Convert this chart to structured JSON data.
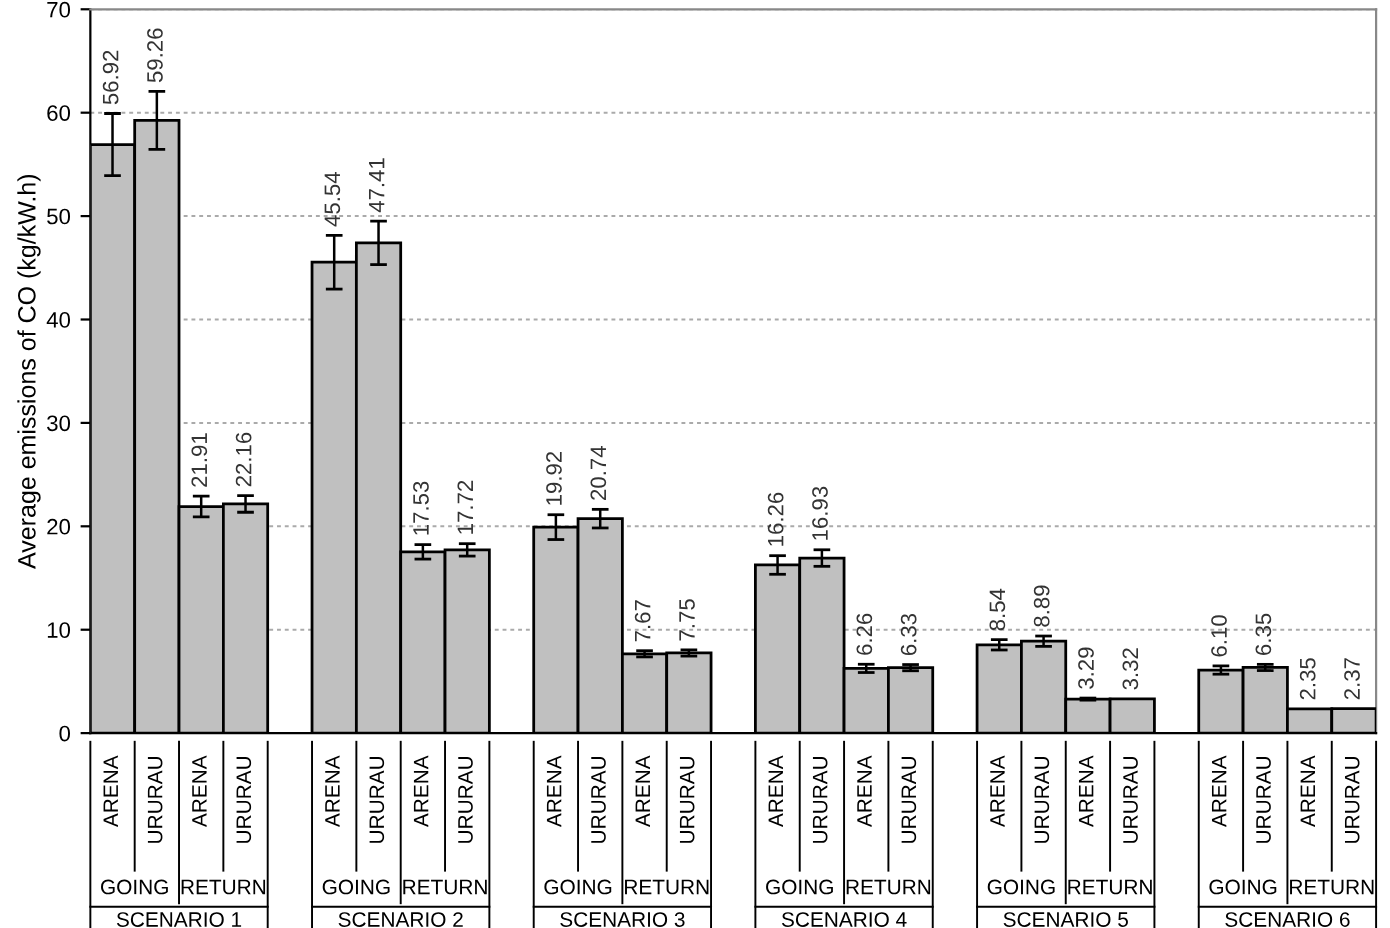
{
  "chart_data": {
    "type": "bar",
    "ylabel": "Average emissions of CO (kg/kW.h)",
    "categories": [
      "ARENA",
      "URURAU",
      "ARENA",
      "URURAU",
      null,
      "ARENA",
      "URURAU",
      "ARENA",
      "URURAU",
      null,
      "ARENA",
      "URURAU",
      "ARENA",
      "URURAU",
      null,
      "ARENA",
      "URURAU",
      "ARENA",
      "URURAU",
      null,
      "ARENA",
      "URURAU",
      "ARENA",
      "URURAU",
      null,
      "ARENA",
      "URURAU",
      "ARENA",
      "URURAU"
    ],
    "values": [
      56.92,
      59.26,
      21.91,
      22.16,
      null,
      45.54,
      47.41,
      17.53,
      17.72,
      null,
      19.92,
      20.74,
      7.67,
      7.75,
      null,
      16.26,
      16.93,
      6.26,
      6.33,
      null,
      8.54,
      8.89,
      3.29,
      3.32,
      null,
      6.1,
      6.35,
      2.35,
      2.37
    ],
    "value_labels": [
      "56.92",
      "59.26",
      "21.91",
      "22.16",
      null,
      "45.54",
      "47.41",
      "17.53",
      "17.72",
      null,
      "19.92",
      "20.74",
      "7.67",
      "7.75",
      null,
      "16.26",
      "16.93",
      "6.26",
      "6.33",
      null,
      "8.54",
      "8.89",
      "3.29",
      "3.32",
      null,
      "6.10",
      "6.35",
      "2.35",
      "2.37"
    ],
    "errors": [
      3,
      2.8,
      1,
      0.8,
      null,
      2.6,
      2.1,
      0.7,
      0.6,
      null,
      1.2,
      0.9,
      0.3,
      0.3,
      null,
      0.9,
      0.8,
      0.4,
      0.3,
      null,
      0.5,
      0.5,
      0.1,
      null,
      null,
      0.4,
      0.3,
      null,
      null
    ],
    "color": "#c0c0c0",
    "annotations": [
      "GOING",
      "RETURN",
      "GOING",
      "RETURN",
      "GOING",
      "RETURN",
      "GOING",
      "RETURN",
      "GOING",
      "RETURN",
      "GOING",
      "RETURN",
      "SCENARIO 1",
      "SCENARIO 2",
      "SCENARIO 3",
      "SCENARIO 4",
      "SCENARIO 5",
      "SCENARIO 6"
    ],
    "ylim": [
      0,
      70
    ],
    "yticks": [
      0,
      10,
      20,
      30,
      40,
      50,
      60,
      70
    ],
    "grid": "y",
    "legend": false
  }
}
